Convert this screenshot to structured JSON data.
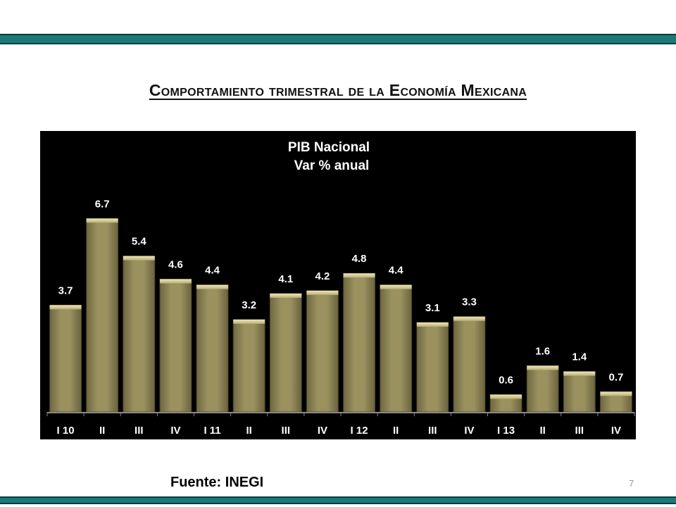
{
  "slide": {
    "title": "Comportamiento trimestral de la Economía Mexicana",
    "source": "Fuente: INEGI",
    "page_number": "7"
  },
  "colors": {
    "rule": "#1a7a7a",
    "chart_background": "#000000",
    "bar_fill": "#8f8656",
    "bar_top": "#d8cf95",
    "text_on_chart": "#ffffff"
  },
  "chart_data": {
    "type": "bar",
    "title_lines": [
      "PIB Nacional",
      "Var % anual"
    ],
    "categories": [
      "I 10",
      "II",
      "III",
      "IV",
      "I 11",
      "II",
      "III",
      "IV",
      "I 12",
      "II",
      "III",
      "IV",
      "I 13",
      "II",
      "III",
      "IV"
    ],
    "values": [
      3.7,
      6.7,
      5.4,
      4.6,
      4.4,
      3.2,
      4.1,
      4.2,
      4.8,
      4.4,
      3.1,
      3.3,
      0.6,
      1.6,
      1.4,
      0.7
    ],
    "data_labels": [
      "3.7",
      "6.7",
      "5.4",
      "4.6",
      "4.4",
      "3.2",
      "4.1",
      "4.2",
      "4.8",
      "4.4",
      "3.1",
      "3.3",
      "0.6",
      "1.6",
      "1.4",
      "0.7"
    ],
    "ylim": [
      0,
      7
    ],
    "grid": false,
    "legend": "none"
  }
}
